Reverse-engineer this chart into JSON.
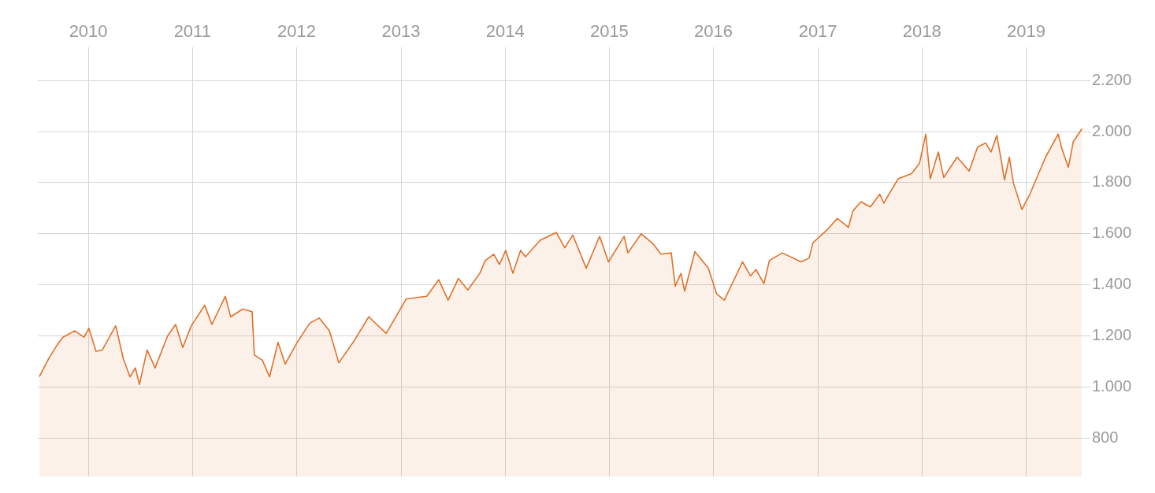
{
  "chart_data": {
    "type": "area",
    "legend": false,
    "grid": true,
    "xlim": [
      "2009-07-08",
      "2019-07-23"
    ],
    "xticks": [
      {
        "value": "2010",
        "label": "2010"
      },
      {
        "value": "2011",
        "label": "2011"
      },
      {
        "value": "2012",
        "label": "2012"
      },
      {
        "value": "2013",
        "label": "2013"
      },
      {
        "value": "2014",
        "label": "2014"
      },
      {
        "value": "2015",
        "label": "2015"
      },
      {
        "value": "2016",
        "label": "2016"
      },
      {
        "value": "2017",
        "label": "2017"
      },
      {
        "value": "2018",
        "label": "2018"
      },
      {
        "value": "2019",
        "label": "2019"
      }
    ],
    "ylim": [
      650,
      2330
    ],
    "yticks": [
      {
        "value": 800,
        "label": "800"
      },
      {
        "value": 1000,
        "label": "1.000"
      },
      {
        "value": 1200,
        "label": "1.200"
      },
      {
        "value": 1400,
        "label": "1.400"
      },
      {
        "value": 1600,
        "label": "1.600"
      },
      {
        "value": 1800,
        "label": "1.800"
      },
      {
        "value": 2000,
        "label": "2.000"
      },
      {
        "value": 2200,
        "label": "2.200"
      }
    ],
    "series": [
      {
        "color": "#e0712a",
        "x": [
          "2009-07-13",
          "2009-08-17",
          "2009-09-14",
          "2009-10-04",
          "2009-11-14",
          "2009-12-17",
          "2010-01-03",
          "2010-01-28",
          "2010-02-19",
          "2010-03-18",
          "2010-04-07",
          "2010-05-04",
          "2010-05-27",
          "2010-06-15",
          "2010-06-29",
          "2010-07-26",
          "2010-08-23",
          "2010-10-06",
          "2010-11-03",
          "2010-11-28",
          "2010-12-28",
          "2011-02-13",
          "2011-03-10",
          "2011-04-26",
          "2011-05-15",
          "2011-06-26",
          "2011-07-29",
          "2011-08-06",
          "2011-09-03",
          "2011-09-28",
          "2011-10-28",
          "2011-11-22",
          "2012-01-03",
          "2012-02-16",
          "2012-03-20",
          "2012-04-25",
          "2012-05-28",
          "2012-07-23",
          "2012-09-10",
          "2012-11-10",
          "2013-01-19",
          "2013-04-01",
          "2013-05-13",
          "2013-06-15",
          "2013-07-21",
          "2013-08-23",
          "2013-10-04",
          "2013-10-23",
          "2013-11-22",
          "2013-12-12",
          "2014-01-03",
          "2014-01-28",
          "2014-02-24",
          "2014-03-13",
          "2014-05-04",
          "2014-06-29",
          "2014-07-29",
          "2014-08-26",
          "2014-10-12",
          "2014-11-28",
          "2014-12-29",
          "2015-02-22",
          "2015-03-07",
          "2015-04-23",
          "2015-06-04",
          "2015-07-01",
          "2015-08-06",
          "2015-08-20",
          "2015-09-09",
          "2015-09-22",
          "2015-10-28",
          "2015-12-14",
          "2016-01-12",
          "2016-02-08",
          "2016-04-12",
          "2016-05-10",
          "2016-05-29",
          "2016-06-26",
          "2016-07-15",
          "2016-08-29",
          "2016-11-03",
          "2016-12-01",
          "2016-12-15",
          "2017-02-02",
          "2017-03-10",
          "2017-04-18",
          "2017-05-04",
          "2017-06-01",
          "2017-07-04",
          "2017-08-06",
          "2017-08-20",
          "2017-10-09",
          "2017-11-25",
          "2017-12-23",
          "2018-01-14",
          "2018-01-30",
          "2018-02-27",
          "2018-03-18",
          "2018-05-04",
          "2018-06-15",
          "2018-07-15",
          "2018-08-12",
          "2018-08-31",
          "2018-09-20",
          "2018-10-06",
          "2018-10-17",
          "2018-11-03",
          "2018-11-17",
          "2018-12-17",
          "2019-01-14",
          "2019-03-10",
          "2019-04-23",
          "2019-05-07",
          "2019-05-29",
          "2019-06-15",
          "2019-07-15"
        ],
        "values": [
          1040,
          1115,
          1165,
          1195,
          1220,
          1195,
          1230,
          1140,
          1145,
          1200,
          1240,
          1110,
          1040,
          1075,
          1010,
          1145,
          1075,
          1200,
          1245,
          1155,
          1240,
          1320,
          1245,
          1355,
          1275,
          1305,
          1295,
          1125,
          1105,
          1040,
          1175,
          1090,
          1175,
          1250,
          1270,
          1220,
          1095,
          1185,
          1275,
          1210,
          1345,
          1355,
          1420,
          1340,
          1425,
          1380,
          1445,
          1495,
          1520,
          1480,
          1535,
          1445,
          1535,
          1510,
          1575,
          1605,
          1545,
          1595,
          1465,
          1590,
          1490,
          1590,
          1525,
          1600,
          1560,
          1520,
          1525,
          1395,
          1445,
          1375,
          1530,
          1465,
          1365,
          1340,
          1490,
          1435,
          1460,
          1405,
          1495,
          1525,
          1490,
          1505,
          1565,
          1615,
          1660,
          1625,
          1690,
          1725,
          1705,
          1755,
          1720,
          1815,
          1835,
          1875,
          1990,
          1815,
          1920,
          1820,
          1900,
          1845,
          1940,
          1955,
          1920,
          1985,
          1885,
          1810,
          1900,
          1800,
          1695,
          1755,
          1900,
          1990,
          1930,
          1860,
          1960,
          2010
        ]
      }
    ]
  }
}
